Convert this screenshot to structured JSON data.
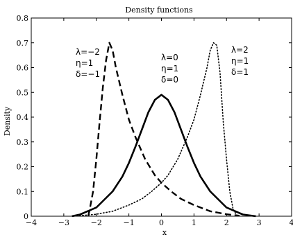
{
  "chart_data": {
    "type": "line",
    "title": "Density functions",
    "xlabel": "x",
    "ylabel": "Density",
    "xlim": [
      -4,
      4
    ],
    "ylim": [
      0,
      0.8
    ],
    "x_ticks": [
      "−4",
      "−3",
      "−2",
      "−1",
      "0",
      "1",
      "2",
      "3",
      "4"
    ],
    "y_ticks": [
      "0",
      "0.1",
      "0.2",
      "0.3",
      "0.4",
      "0.5",
      "0.6",
      "0.7",
      "0.8"
    ],
    "grid": false,
    "legend": "none",
    "series": [
      {
        "style": "dashed",
        "color": "#000000",
        "annotation": [
          "λ=−2",
          "η=1",
          "δ=−1"
        ],
        "points": [
          [
            -2.25,
            0.0
          ],
          [
            -2.2,
            0.03
          ],
          [
            -2.1,
            0.1
          ],
          [
            -2.0,
            0.23
          ],
          [
            -1.9,
            0.38
          ],
          [
            -1.8,
            0.52
          ],
          [
            -1.7,
            0.63
          ],
          [
            -1.6,
            0.7
          ],
          [
            -1.5,
            0.67
          ],
          [
            -1.4,
            0.6
          ],
          [
            -1.2,
            0.49
          ],
          [
            -1.0,
            0.39
          ],
          [
            -0.8,
            0.32
          ],
          [
            -0.5,
            0.23
          ],
          [
            -0.2,
            0.165
          ],
          [
            0.0,
            0.135
          ],
          [
            0.3,
            0.1
          ],
          [
            0.6,
            0.07
          ],
          [
            1.0,
            0.045
          ],
          [
            1.5,
            0.02
          ],
          [
            2.0,
            0.008
          ],
          [
            2.4,
            0.002
          ]
        ]
      },
      {
        "style": "solid",
        "color": "#000000",
        "annotation": [
          "λ=0",
          "η=1",
          "δ=0"
        ],
        "points": [
          [
            -2.75,
            0.0
          ],
          [
            -2.5,
            0.007
          ],
          [
            -2.0,
            0.035
          ],
          [
            -1.5,
            0.1
          ],
          [
            -1.2,
            0.16
          ],
          [
            -1.0,
            0.215
          ],
          [
            -0.8,
            0.28
          ],
          [
            -0.6,
            0.35
          ],
          [
            -0.4,
            0.42
          ],
          [
            -0.2,
            0.47
          ],
          [
            0.0,
            0.49
          ],
          [
            0.2,
            0.47
          ],
          [
            0.4,
            0.42
          ],
          [
            0.6,
            0.35
          ],
          [
            0.8,
            0.28
          ],
          [
            1.0,
            0.215
          ],
          [
            1.2,
            0.16
          ],
          [
            1.5,
            0.1
          ],
          [
            2.0,
            0.035
          ],
          [
            2.5,
            0.007
          ],
          [
            2.9,
            0.0
          ]
        ]
      },
      {
        "style": "dotted",
        "color": "#000000",
        "annotation": [
          "λ=2",
          "η=1",
          "δ=1"
        ],
        "points": [
          [
            -2.7,
            0.0
          ],
          [
            -2.0,
            0.008
          ],
          [
            -1.5,
            0.02
          ],
          [
            -1.0,
            0.045
          ],
          [
            -0.6,
            0.07
          ],
          [
            -0.3,
            0.1
          ],
          [
            0.0,
            0.135
          ],
          [
            0.2,
            0.165
          ],
          [
            0.5,
            0.23
          ],
          [
            0.8,
            0.32
          ],
          [
            1.0,
            0.39
          ],
          [
            1.2,
            0.49
          ],
          [
            1.4,
            0.6
          ],
          [
            1.5,
            0.67
          ],
          [
            1.6,
            0.7
          ],
          [
            1.7,
            0.69
          ],
          [
            1.8,
            0.58
          ],
          [
            1.9,
            0.38
          ],
          [
            2.0,
            0.23
          ],
          [
            2.1,
            0.1
          ],
          [
            2.2,
            0.03
          ],
          [
            2.3,
            0.005
          ],
          [
            2.35,
            0.0
          ]
        ]
      }
    ]
  }
}
